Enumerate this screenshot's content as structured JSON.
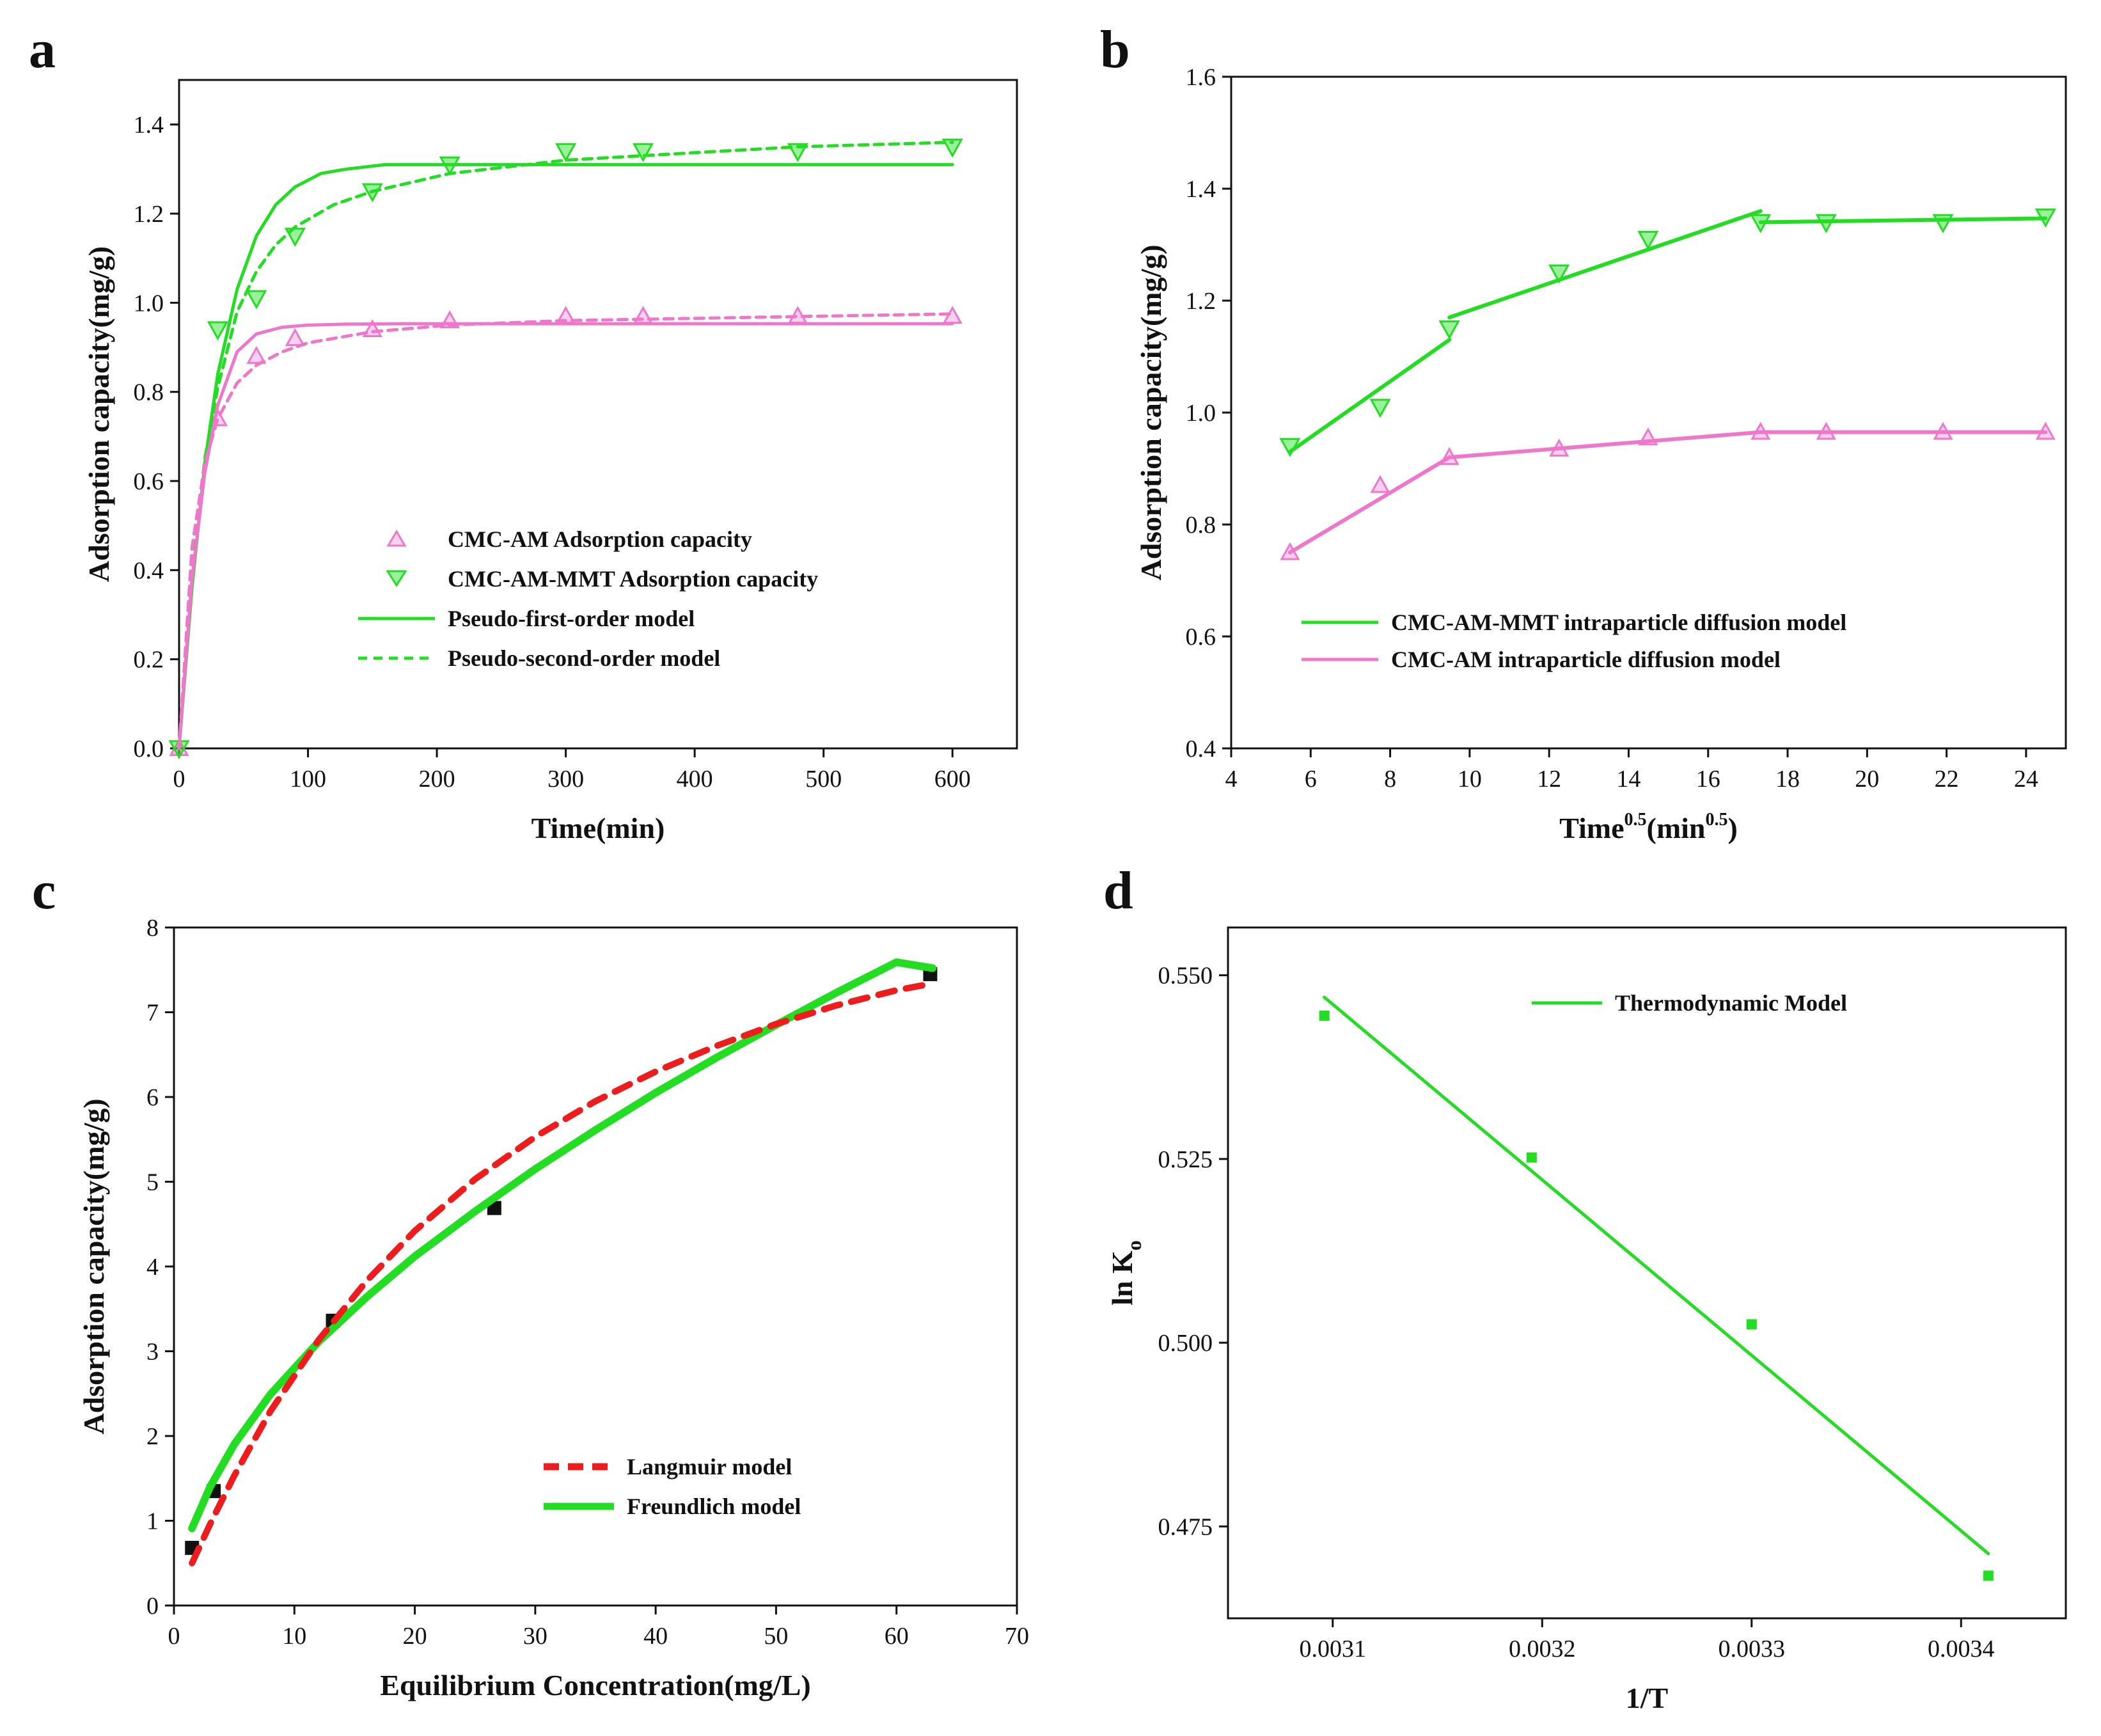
{
  "colors": {
    "green": "#22dd22",
    "pink": "#ee77cc",
    "red": "#ee1c1c",
    "black": "#111111"
  },
  "chart_data": [
    {
      "panel": "a",
      "type": "scatter",
      "xlabel": "Time(min)",
      "ylabel": "Adsorption capacity(mg/g)",
      "xlim": [
        0,
        650
      ],
      "ylim": [
        0,
        1.5
      ],
      "xticks": [
        0,
        100,
        200,
        300,
        400,
        500,
        600
      ],
      "yticks": [
        0.0,
        0.2,
        0.4,
        0.6,
        0.8,
        1.0,
        1.2,
        1.4
      ],
      "legend_position": "center-right",
      "grid": false,
      "series": [
        {
          "name": "CMC-AM Adsorption capacity",
          "kind": "points",
          "marker": "triangle-up-open",
          "color": "#ee77cc",
          "x": [
            0,
            30,
            60,
            90,
            150,
            210,
            300,
            360,
            480,
            600
          ],
          "y": [
            0.0,
            0.74,
            0.88,
            0.92,
            0.94,
            0.96,
            0.97,
            0.97,
            0.97,
            0.97
          ]
        },
        {
          "name": "CMC-AM-MMT Adsorption capacity",
          "kind": "points",
          "marker": "triangle-down-open",
          "color": "#22dd22",
          "x": [
            0,
            30,
            60,
            90,
            150,
            210,
            300,
            360,
            480,
            600
          ],
          "y": [
            0.0,
            0.94,
            1.01,
            1.15,
            1.25,
            1.31,
            1.34,
            1.34,
            1.34,
            1.35
          ]
        },
        {
          "name": "Pseudo-first-order model",
          "kind": "line",
          "dash": "solid",
          "color": "#22dd22",
          "x": [
            0,
            10,
            20,
            30,
            45,
            60,
            75,
            90,
            110,
            130,
            160,
            200,
            260,
            350,
            450,
            600
          ],
          "y": [
            0.0,
            0.36,
            0.64,
            0.84,
            1.03,
            1.15,
            1.22,
            1.26,
            1.29,
            1.3,
            1.31,
            1.31,
            1.31,
            1.31,
            1.31,
            1.31
          ]
        },
        {
          "name": "",
          "kind": "line",
          "dash": "dashed",
          "color": "#22dd22",
          "x": [
            0,
            10,
            20,
            30,
            45,
            60,
            75,
            90,
            120,
            150,
            210,
            300,
            360,
            480,
            600
          ],
          "y": [
            0.0,
            0.4,
            0.65,
            0.81,
            0.98,
            1.07,
            1.13,
            1.17,
            1.22,
            1.25,
            1.29,
            1.32,
            1.33,
            1.35,
            1.36
          ]
        },
        {
          "name": "",
          "kind": "line",
          "dash": "solid",
          "color": "#ee77cc",
          "x": [
            0,
            10,
            20,
            30,
            45,
            60,
            80,
            100,
            130,
            170,
            250,
            400,
            600
          ],
          "y": [
            0.0,
            0.38,
            0.62,
            0.77,
            0.89,
            0.93,
            0.945,
            0.95,
            0.952,
            0.953,
            0.953,
            0.953,
            0.953
          ]
        },
        {
          "name": "",
          "kind": "line",
          "dash": "dashed",
          "color": "#ee77cc",
          "x": [
            0,
            10,
            20,
            30,
            45,
            60,
            80,
            100,
            150,
            210,
            300,
            400,
            500,
            600
          ],
          "y": [
            0.0,
            0.45,
            0.64,
            0.74,
            0.82,
            0.86,
            0.89,
            0.91,
            0.935,
            0.95,
            0.96,
            0.965,
            0.97,
            0.975
          ]
        }
      ],
      "legend": [
        {
          "label": "CMC-AM Adsorption capacity",
          "style": "marker-up",
          "color": "#ee77cc"
        },
        {
          "label": "CMC-AM-MMT Adsorption capacity",
          "style": "marker-down",
          "color": "#22dd22"
        },
        {
          "label": "Pseudo-first-order model",
          "style": "line-solid",
          "color": "#22dd22"
        },
        {
          "label": "Pseudo-second-order model",
          "style": "line-dashed",
          "color": "#22dd22"
        }
      ]
    },
    {
      "panel": "b",
      "type": "scatter",
      "xlabel": "Time",
      "xlabel_sup1": "0.5",
      "xlabel_mid": "(min",
      "xlabel_sup2": "0.5",
      "xlabel_end": ")",
      "ylabel": "Adsorption capacity(mg/g)",
      "xlim": [
        4,
        25
      ],
      "ylim": [
        0.4,
        1.6
      ],
      "xticks": [
        4,
        6,
        8,
        10,
        12,
        14,
        16,
        18,
        20,
        22,
        24
      ],
      "yticks": [
        0.4,
        0.6,
        0.8,
        1.0,
        1.2,
        1.4,
        1.6
      ],
      "legend_position": "bottom-right",
      "grid": false,
      "series": [
        {
          "name": "CMC-AM-MMT",
          "kind": "points",
          "marker": "triangle-down-open",
          "color": "#22dd22",
          "x": [
            5.48,
            7.75,
            9.49,
            12.25,
            14.49,
            17.32,
            18.97,
            21.91,
            24.49
          ],
          "y": [
            0.94,
            1.01,
            1.15,
            1.25,
            1.31,
            1.34,
            1.34,
            1.34,
            1.35
          ]
        },
        {
          "name": "CMC-AM",
          "kind": "points",
          "marker": "triangle-up-open",
          "color": "#ee77cc",
          "x": [
            5.48,
            7.75,
            9.49,
            12.25,
            14.49,
            17.32,
            18.97,
            21.91,
            24.49
          ],
          "y": [
            0.75,
            0.87,
            0.92,
            0.935,
            0.955,
            0.965,
            0.965,
            0.965,
            0.965
          ]
        },
        {
          "name": "CMC-AM-MMT intraparticle diffusion model",
          "kind": "segments",
          "color": "#22dd22",
          "segments": [
            [
              [
                5.48,
                0.93
              ],
              [
                9.49,
                1.13
              ]
            ],
            [
              [
                9.49,
                1.17
              ],
              [
                17.32,
                1.36
              ]
            ],
            [
              [
                17.32,
                1.34
              ],
              [
                24.49,
                1.347
              ]
            ]
          ]
        },
        {
          "name": "CMC-AM intraparticle diffusion model",
          "kind": "segments",
          "color": "#ee77cc",
          "segments": [
            [
              [
                5.48,
                0.75
              ],
              [
                9.49,
                0.92
              ]
            ],
            [
              [
                9.49,
                0.92
              ],
              [
                17.32,
                0.965
              ]
            ],
            [
              [
                17.32,
                0.965
              ],
              [
                24.49,
                0.965
              ]
            ]
          ]
        }
      ],
      "legend": [
        {
          "label": "CMC-AM-MMT intraparticle diffusion model",
          "style": "line-solid",
          "color": "#22dd22"
        },
        {
          "label": "CMC-AM intraparticle diffusion model",
          "style": "line-solid",
          "color": "#ee77cc"
        }
      ]
    },
    {
      "panel": "c",
      "type": "scatter",
      "xlabel": "Equilibrium Concentration(mg/L)",
      "ylabel": "Adsorption capacity(mg/g)",
      "xlim": [
        0,
        70
      ],
      "ylim": [
        0,
        8
      ],
      "xticks": [
        0,
        10,
        20,
        30,
        40,
        50,
        60,
        70
      ],
      "yticks": [
        0,
        1,
        2,
        3,
        4,
        5,
        6,
        7,
        8
      ],
      "legend_position": "bottom-right",
      "grid": false,
      "series": [
        {
          "name": "",
          "kind": "points",
          "marker": "square-filled",
          "color": "#111111",
          "x": [
            1.5,
            3.3,
            13.2,
            26.6,
            62.8
          ],
          "y": [
            0.68,
            1.35,
            3.36,
            4.69,
            7.45
          ]
        },
        {
          "name": "Freundlich model",
          "kind": "line",
          "dash": "solid",
          "width": 12,
          "color": "#22dd22",
          "x": [
            1.5,
            3,
            5,
            8,
            12,
            16,
            20,
            25,
            30,
            35,
            40,
            45,
            50,
            55,
            60,
            63
          ],
          "y": [
            0.91,
            1.4,
            1.9,
            2.49,
            3.11,
            3.64,
            4.12,
            4.65,
            5.15,
            5.61,
            6.05,
            6.46,
            6.85,
            7.23,
            7.59,
            7.52
          ]
        },
        {
          "name": "Langmuir model",
          "kind": "line",
          "dash": "dashed",
          "width": 10,
          "color": "#ee1c1c",
          "x": [
            1.5,
            3,
            5,
            8,
            12,
            16,
            20,
            25,
            30,
            35,
            40,
            45,
            50,
            55,
            60,
            63
          ],
          "y": [
            0.5,
            0.96,
            1.53,
            2.29,
            3.13,
            3.83,
            4.42,
            5.03,
            5.53,
            5.95,
            6.3,
            6.6,
            6.86,
            7.08,
            7.26,
            7.34
          ]
        }
      ],
      "legend": [
        {
          "label": "Langmuir model",
          "style": "line-dashed-thick",
          "color": "#ee1c1c"
        },
        {
          "label": "Freundlich model",
          "style": "line-solid-thick",
          "color": "#22dd22"
        }
      ]
    },
    {
      "panel": "d",
      "type": "scatter",
      "xlabel": "1/T",
      "ylabel": "ln K",
      "ylabel_sub": "o",
      "xlim": [
        0.00305,
        0.00345
      ],
      "ylim": [
        0.4625,
        0.5565
      ],
      "xticks": [
        "0.0031",
        "0.0032",
        "0.0033",
        "0.0034"
      ],
      "xtick_values": [
        0.0031,
        0.0032,
        0.0033,
        0.0034
      ],
      "yticks": [
        "0.475",
        "0.500",
        "0.525",
        "0.550"
      ],
      "ytick_values": [
        0.475,
        0.5,
        0.525,
        0.55
      ],
      "legend_position": "top-right",
      "grid": false,
      "series": [
        {
          "name": "",
          "kind": "points",
          "marker": "square-filled-small",
          "color": "#22dd22",
          "x": [
            0.003096,
            0.003195,
            0.0033,
            0.003413
          ],
          "y": [
            0.5445,
            0.5252,
            0.5025,
            0.4683
          ]
        },
        {
          "name": "Thermodynamic Model",
          "kind": "line",
          "dash": "solid",
          "color": "#22dd22",
          "x": [
            0.003096,
            0.003413
          ],
          "y": [
            0.547,
            0.4713
          ]
        }
      ],
      "legend": [
        {
          "label": "Thermodynamic Model",
          "style": "line-solid",
          "color": "#22dd22"
        }
      ]
    }
  ]
}
